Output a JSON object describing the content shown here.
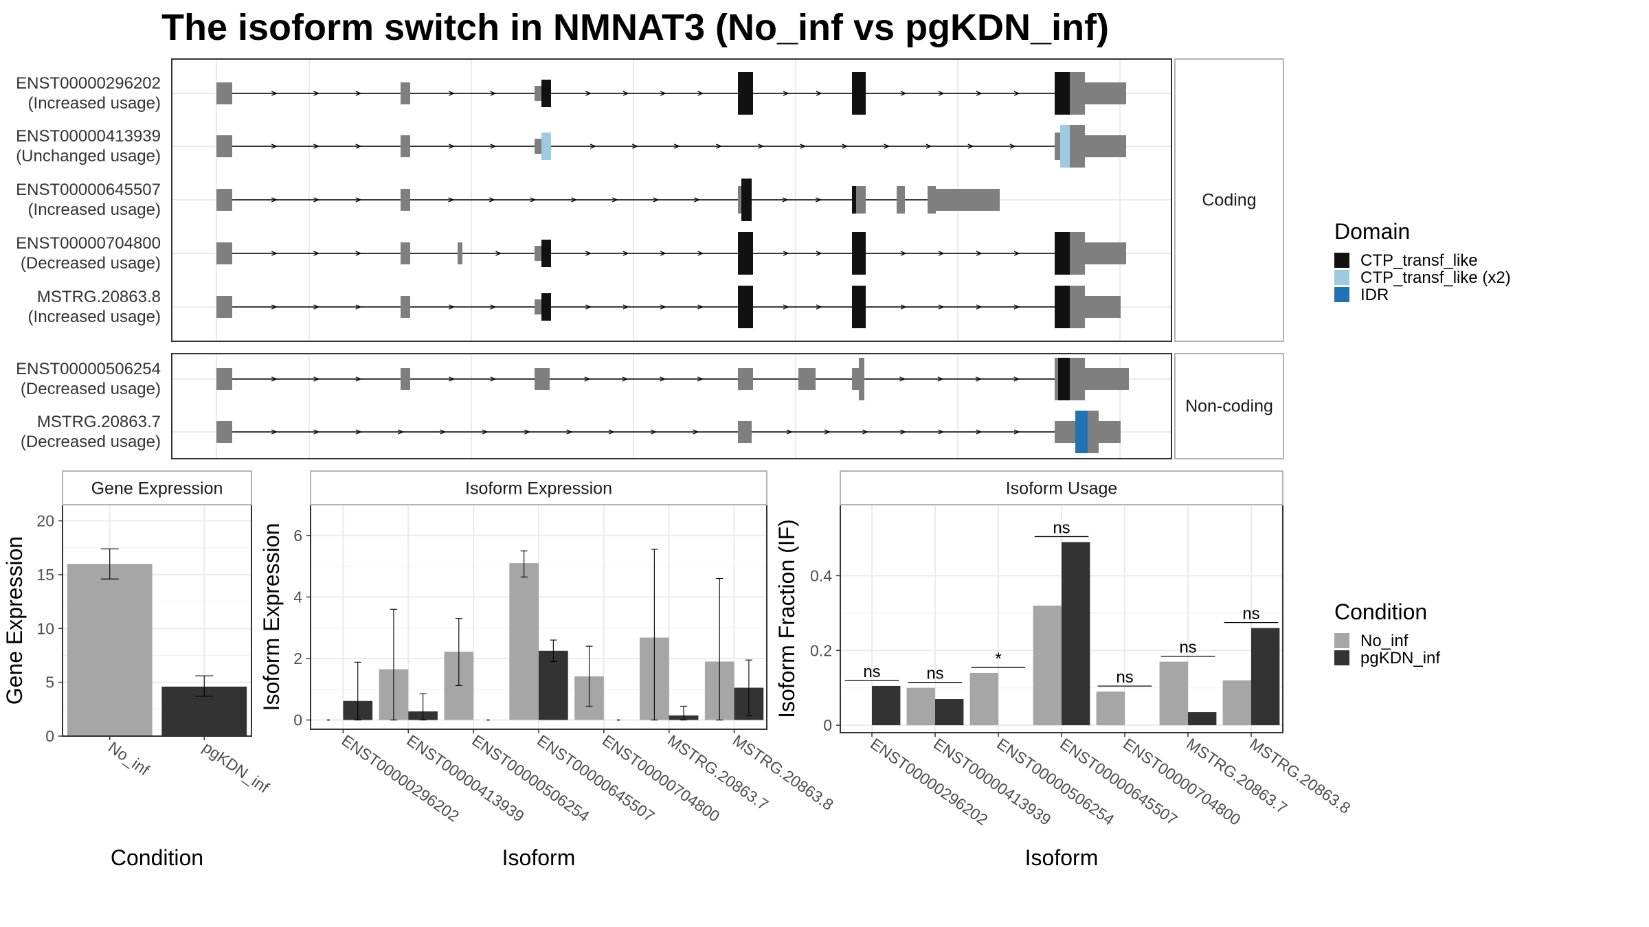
{
  "colors": {
    "exon": "#7f7f7f",
    "intron": "#000000",
    "grid": "#ebebeb",
    "panel_border": "#333333",
    "strip_border": "#b3b3b3",
    "condition": {
      "No_inf": "#a6a6a6",
      "pgKDN_inf": "#333333"
    },
    "domain": {
      "CTP_transf_like": "#111111",
      "CTP_transf_like (x2)": "#9ecae1",
      "IDR": "#2171b5"
    }
  },
  "chart_data": [
    {
      "type": "gene-structure",
      "title": "The isoform switch in NMNAT3 (No_inf vs pgKDN_inf)",
      "groups": [
        {
          "label": "Coding",
          "transcripts": [
            {
              "id": "ENST00000296202",
              "usage": "(Increased usage)"
            },
            {
              "id": "ENST00000413939",
              "usage": "(Unchanged usage)"
            },
            {
              "id": "ENST00000645507",
              "usage": "(Increased usage)"
            },
            {
              "id": "ENST00000704800",
              "usage": "(Decreased usage)"
            },
            {
              "id": "MSTRG.20863.8",
              "usage": "(Increased usage)"
            }
          ]
        },
        {
          "label": "Non-coding",
          "transcripts": [
            {
              "id": "ENST00000506254",
              "usage": "(Decreased usage)"
            },
            {
              "id": "MSTRG.20863.7",
              "usage": "(Decreased usage)"
            }
          ]
        }
      ],
      "legend": {
        "title": "Domain",
        "position": "right",
        "items": [
          "CTP_transf_like",
          "CTP_transf_like (x2)",
          "IDR"
        ]
      }
    },
    {
      "type": "bar",
      "strip": "Gene Expression",
      "xlabel": "Condition",
      "ylabel": "Gene Expression",
      "categories": [
        "No_inf",
        "pgKDN_inf"
      ],
      "values": [
        16.0,
        4.6
      ],
      "error_low": [
        14.6,
        3.7
      ],
      "error_high": [
        17.4,
        5.6
      ],
      "ylim": [
        0,
        21.5
      ],
      "yticks": [
        0,
        5,
        10,
        15,
        20
      ],
      "grid": true
    },
    {
      "type": "bar",
      "strip": "Isoform Expression",
      "xlabel": "Isoform",
      "ylabel": "Isoform Expression",
      "categories": [
        "ENST00000296202",
        "ENST00000413939",
        "ENST00000506254",
        "ENST00000645507",
        "ENST00000704800",
        "MSTRG.20863.7",
        "MSTRG.20863.8"
      ],
      "series": [
        {
          "name": "No_inf",
          "values": [
            0.0,
            1.65,
            2.22,
            5.1,
            1.42,
            2.68,
            1.9
          ],
          "error_low": [
            0.0,
            0.0,
            1.12,
            4.65,
            0.45,
            0.0,
            0.0
          ],
          "error_high": [
            0.0,
            3.6,
            3.3,
            5.5,
            2.4,
            5.55,
            4.6
          ]
        },
        {
          "name": "pgKDN_inf",
          "values": [
            0.62,
            0.28,
            0.0,
            2.25,
            0.0,
            0.15,
            1.05
          ],
          "error_low": [
            0.0,
            0.0,
            0.0,
            1.9,
            0.0,
            0.0,
            0.15
          ],
          "error_high": [
            1.88,
            0.85,
            0.0,
            2.6,
            0.0,
            0.45,
            1.95
          ]
        }
      ],
      "ylim": [
        -0.3,
        7.0
      ],
      "yticks": [
        0,
        2,
        4,
        6
      ],
      "grid": true
    },
    {
      "type": "bar",
      "strip": "Isoform Usage",
      "xlabel": "Isoform",
      "ylabel": "Isoform Fraction (IF)",
      "categories": [
        "ENST00000296202",
        "ENST00000413939",
        "ENST00000506254",
        "ENST00000645507",
        "ENST00000704800",
        "MSTRG.20863.7",
        "MSTRG.20863.8"
      ],
      "series": [
        {
          "name": "No_inf",
          "values": [
            0.0,
            0.1,
            0.14,
            0.32,
            0.09,
            0.17,
            0.12
          ]
        },
        {
          "name": "pgKDN_inf",
          "values": [
            0.105,
            0.07,
            0.0,
            0.49,
            0.0,
            0.035,
            0.26
          ]
        }
      ],
      "significance": [
        "ns",
        "ns",
        "*",
        "ns",
        "ns",
        "ns",
        "ns"
      ],
      "ylim": [
        -0.02,
        0.59
      ],
      "yticks": [
        0.0,
        0.2,
        0.4
      ],
      "grid": true,
      "legend": {
        "title": "Condition",
        "position": "right",
        "items": [
          "No_inf",
          "pgKDN_inf"
        ]
      }
    }
  ]
}
